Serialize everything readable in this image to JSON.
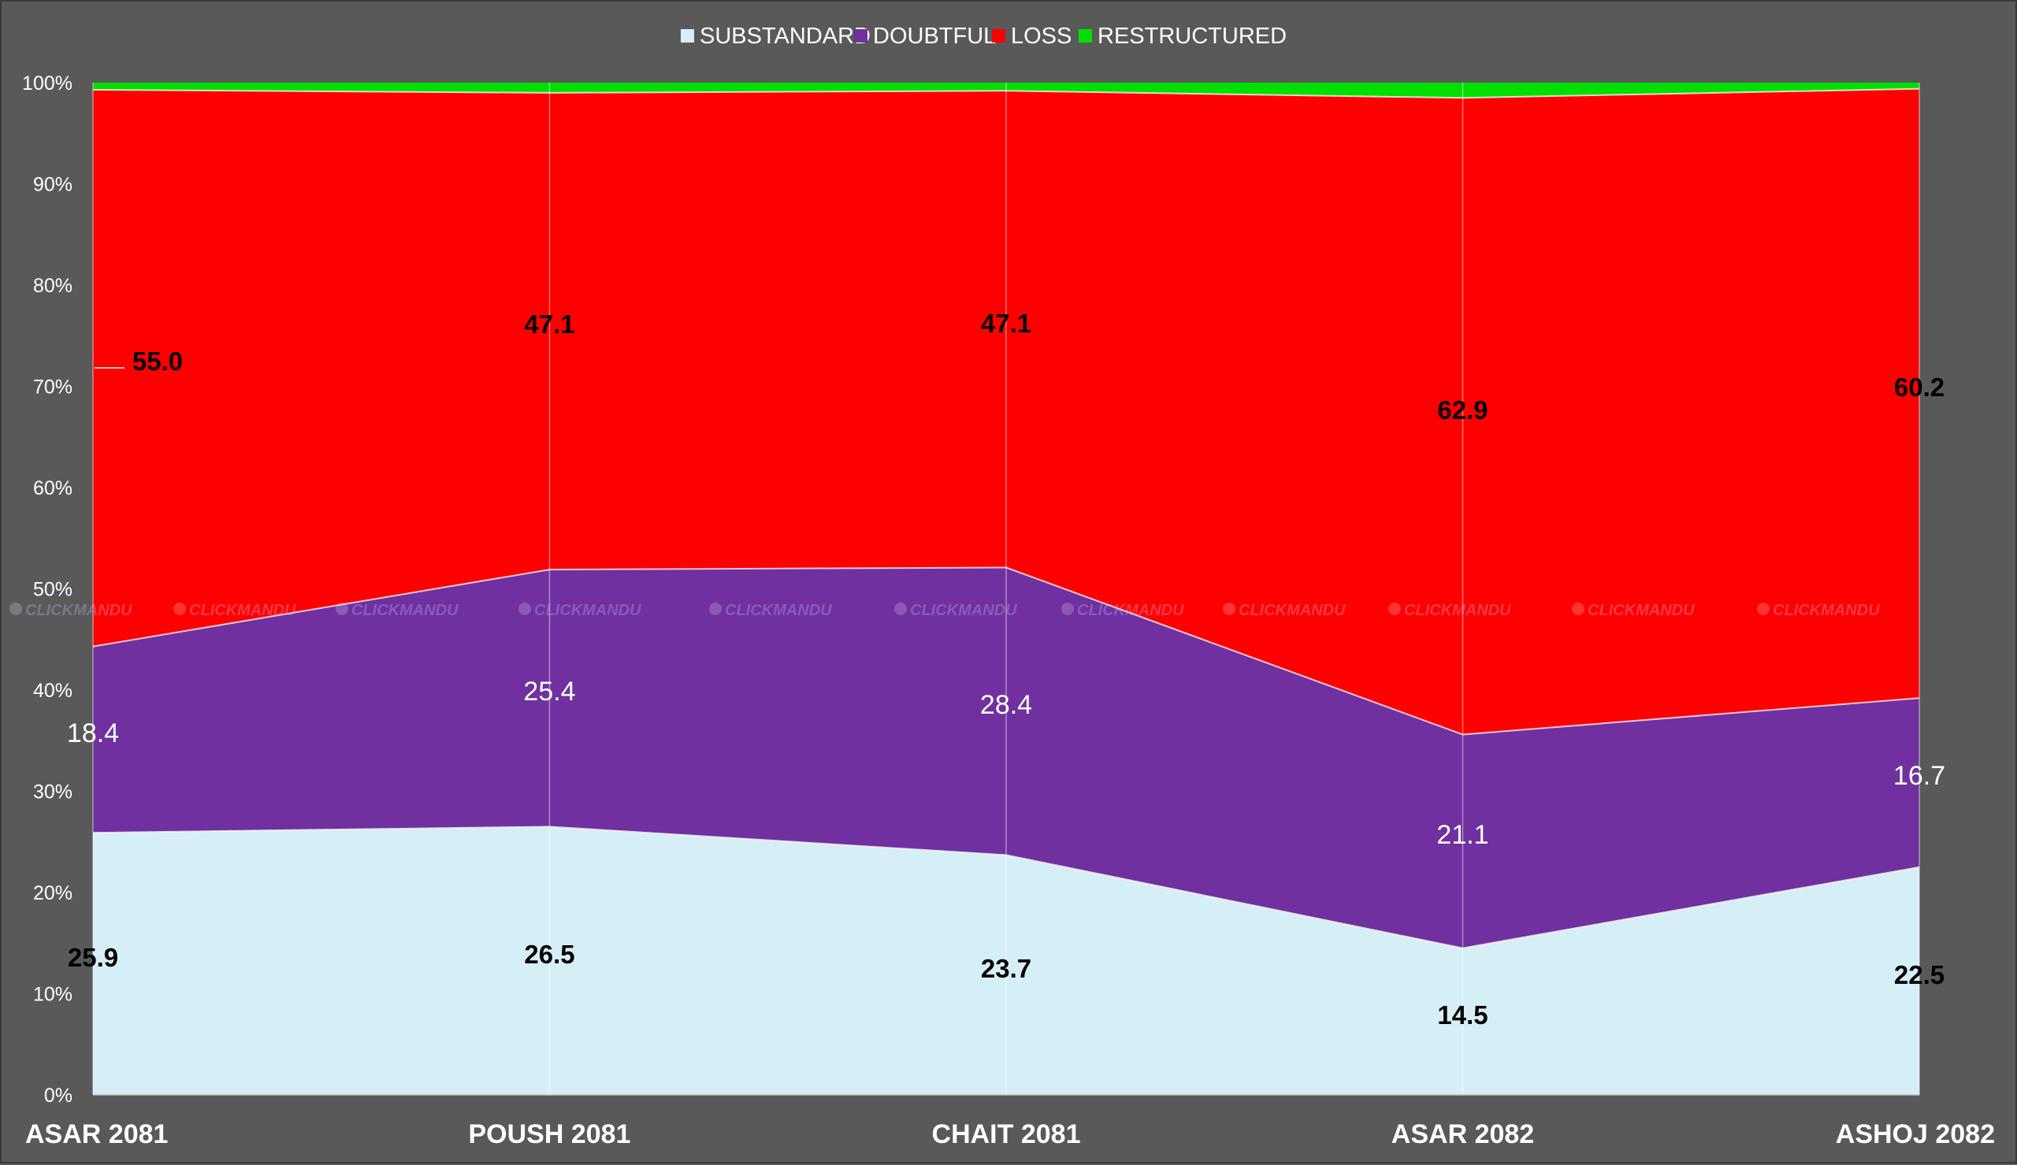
{
  "chart_data": {
    "type": "area",
    "stacked_percent": true,
    "categories": [
      "ASAR 2081",
      "POUSH 2081",
      "CHAIT 2081",
      "ASAR 2082",
      "ASHOJ 2082"
    ],
    "series": [
      {
        "name": "SUBSTANDARD",
        "values": [
          25.9,
          26.5,
          23.7,
          14.5,
          22.5
        ],
        "labels": [
          "25.9",
          "26.5",
          "23.7",
          "14.5",
          "22.5"
        ],
        "color": "#d6eef6",
        "label_style": "dark"
      },
      {
        "name": "DOUBTFUL",
        "values": [
          18.4,
          25.4,
          28.4,
          21.1,
          16.7
        ],
        "labels": [
          "18.4",
          "25.4",
          "28.4",
          "21.1",
          "16.7"
        ],
        "color": "#7030a0",
        "label_style": "light"
      },
      {
        "name": "LOSS",
        "values": [
          55.0,
          47.1,
          47.1,
          62.9,
          60.2
        ],
        "labels": [
          "55.0",
          "47.1",
          "47.1",
          "62.9",
          "60.2"
        ],
        "color": "#ff0000",
        "label_style": "dark"
      },
      {
        "name": "RESTRUCTURED",
        "values": [
          0.7,
          1.0,
          0.8,
          1.5,
          0.6
        ],
        "color": "#00e000"
      }
    ],
    "y_ticks": [
      "0%",
      "10%",
      "20%",
      "30%",
      "40%",
      "50%",
      "60%",
      "70%",
      "80%",
      "90%",
      "100%"
    ],
    "ylim": [
      0,
      100
    ],
    "grid": false,
    "legend_position": "top",
    "watermark": "CLICKMANDU"
  }
}
